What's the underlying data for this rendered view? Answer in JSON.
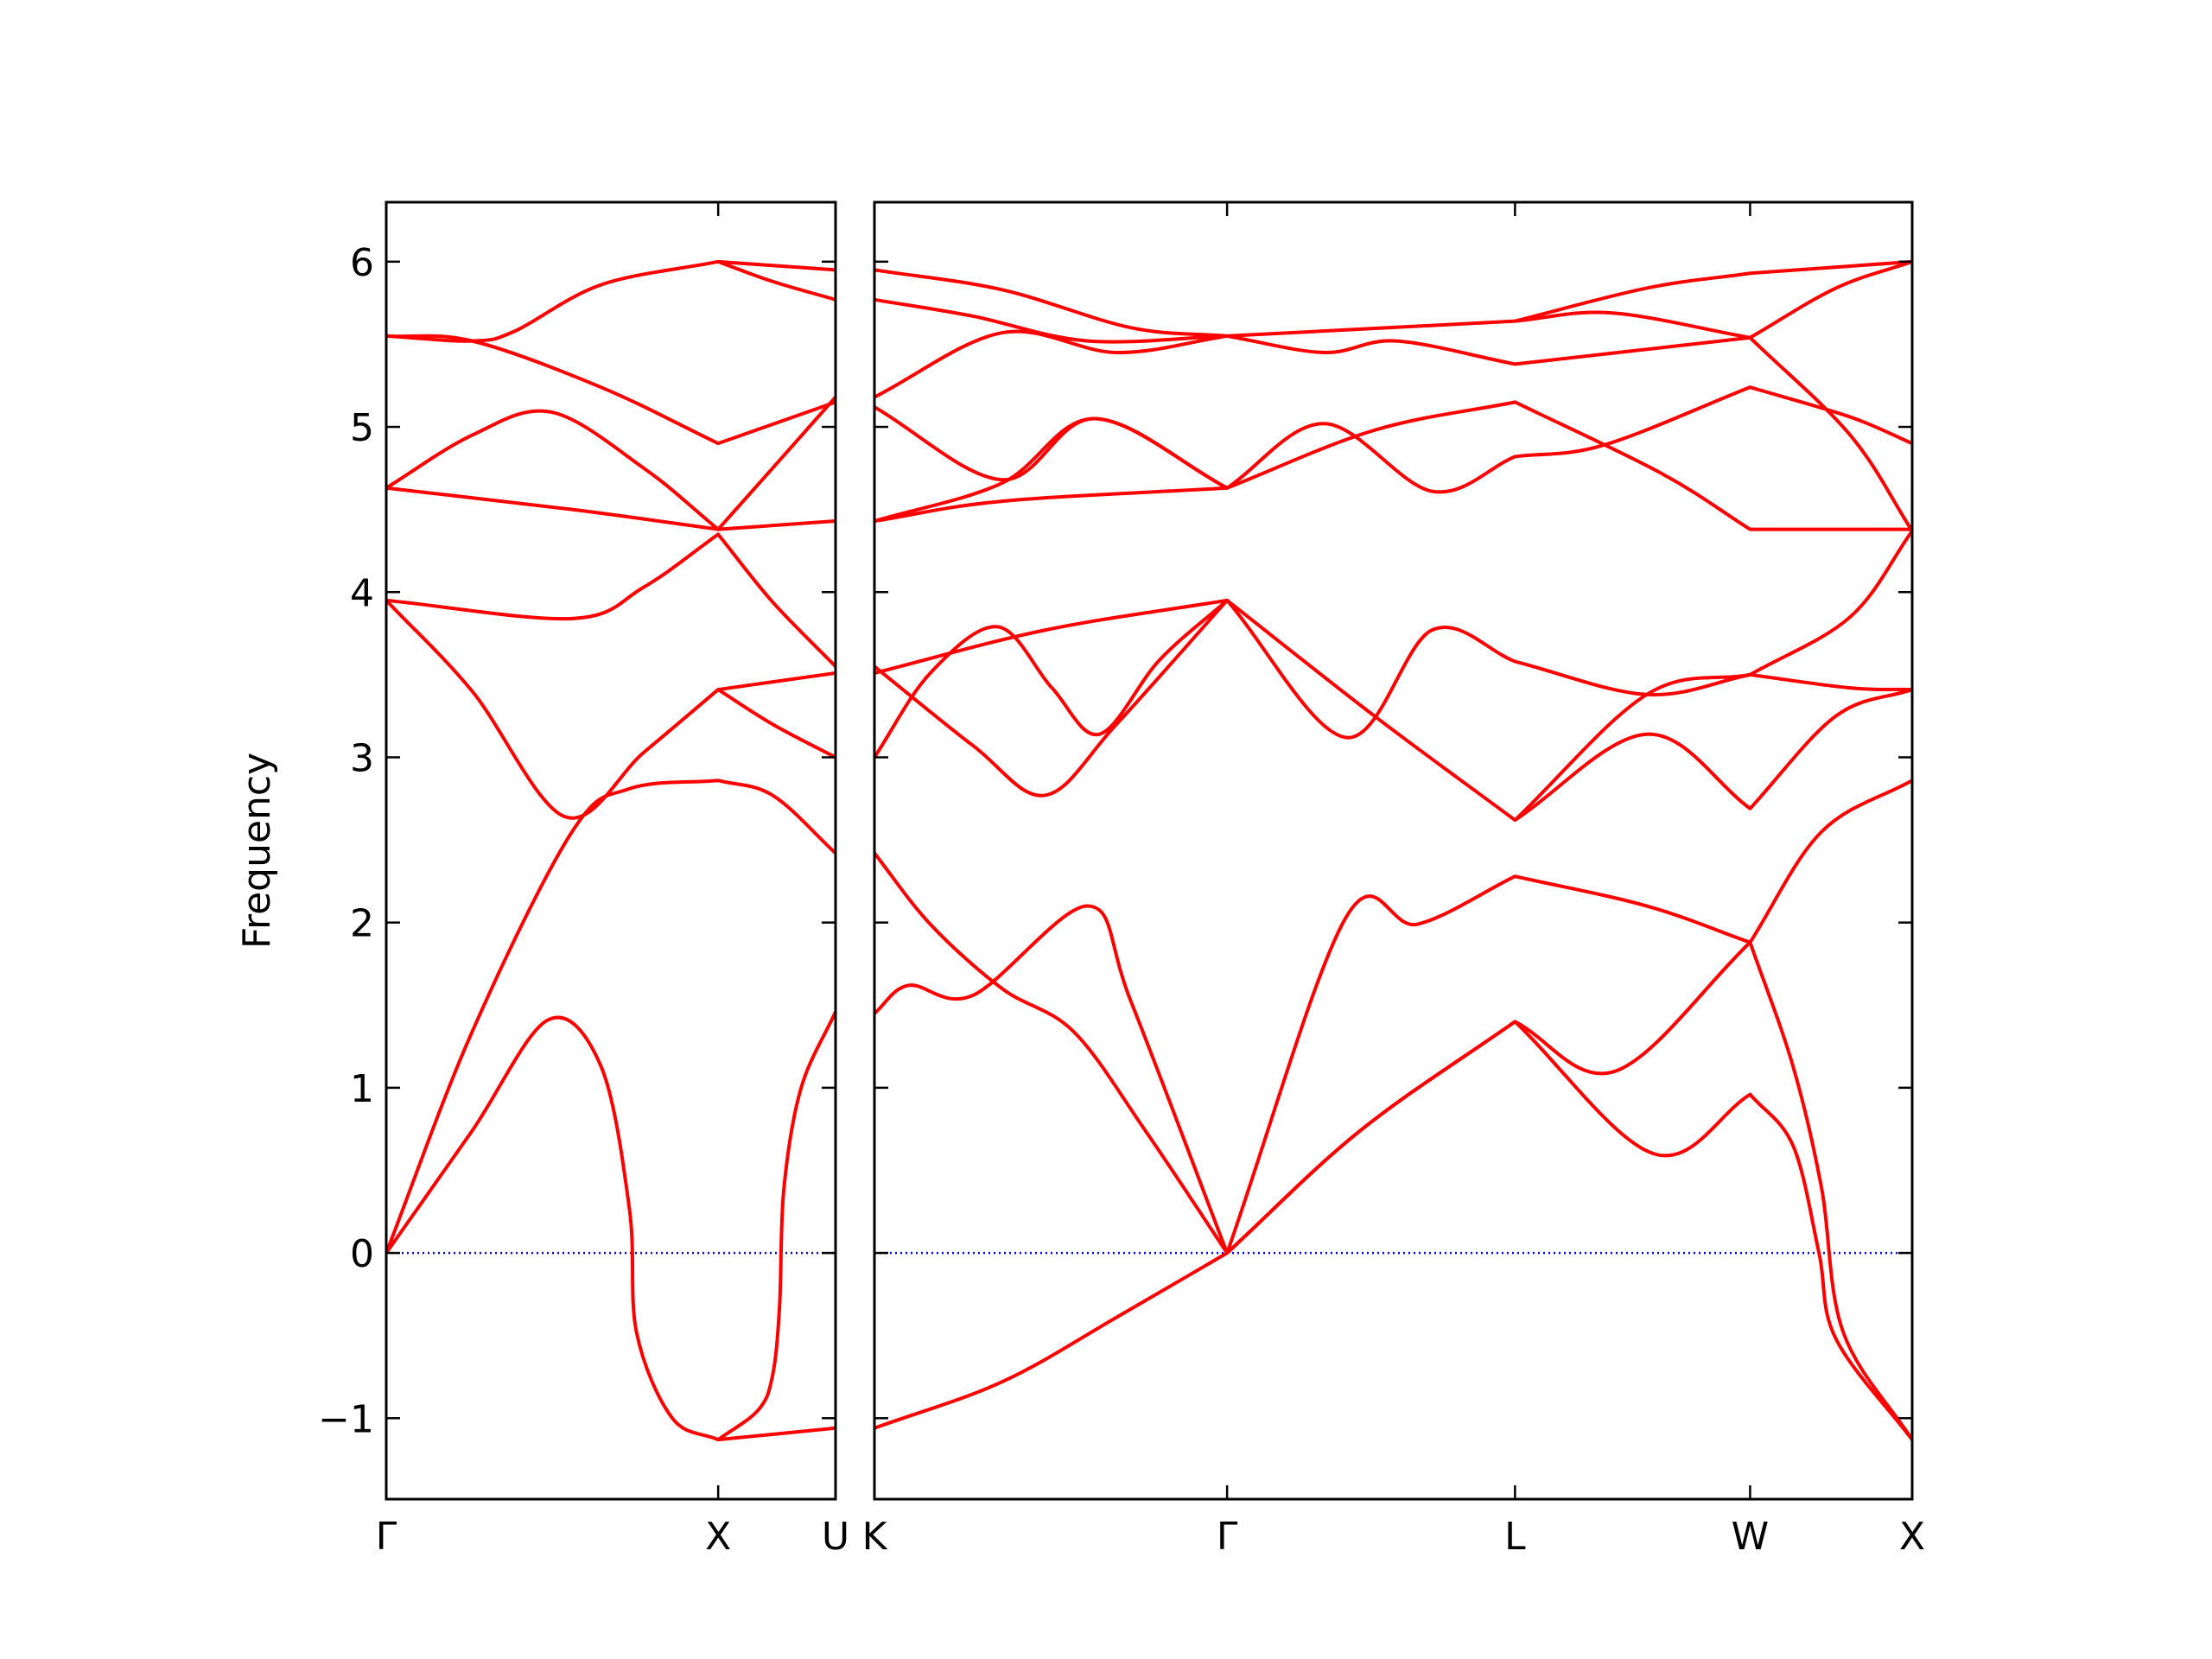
{
  "chart_data": [
    {
      "type": "line",
      "ylabel": "Frequency",
      "color": "#ff0000",
      "hline": 0,
      "hline_color": "#0000ff",
      "show_ytick_labels": true,
      "xlim": [
        0,
        1.3536
      ],
      "xticks": [
        {
          "value": 0,
          "label": "Γ"
        },
        {
          "value": 1.0,
          "label": "X"
        },
        {
          "value": 1.3536,
          "label": "U"
        }
      ],
      "ylim": [
        -1.49,
        6.36
      ],
      "yticks": [
        {
          "value": -1,
          "label": "−1"
        },
        0,
        1,
        2,
        3,
        4,
        5,
        6
      ],
      "series": [
        {
          "x": [
            0,
            0.259,
            0.487,
            0.647,
            0.733,
            0.754,
            0.862,
            1.0,
            1.121,
            1.164,
            1.185,
            1.198,
            1.25,
            1.3536
          ],
          "values": [
            0,
            0.74,
            1.41,
            1.13,
            0.26,
            -0.48,
            -1.0,
            -1.13,
            -0.95,
            -0.74,
            -0.32,
            0.39,
            1.0,
            1.46
          ]
        },
        {
          "x": [
            1.0,
            1.3536
          ],
          "values": [
            -1.13,
            -1.06
          ]
        },
        {
          "x": [
            0,
            0.259,
            0.56,
            0.733,
            1.0,
            1.164,
            1.3536
          ],
          "values": [
            0,
            1.34,
            2.55,
            2.81,
            2.86,
            2.77,
            2.42
          ]
        },
        {
          "x": [
            0,
            0.259,
            0.539,
            0.776,
            1.0,
            1.3536
          ],
          "values": [
            3.95,
            3.4,
            2.64,
            3.03,
            3.41,
            3.51
          ]
        },
        {
          "x": [
            1.0,
            1.164,
            1.3536
          ],
          "values": [
            3.41,
            3.2,
            3.0
          ]
        },
        {
          "x": [
            0,
            0.56,
            0.776,
            1.0,
            1.164,
            1.3536
          ],
          "values": [
            3.95,
            3.84,
            4.03,
            4.35,
            3.94,
            3.55
          ]
        },
        {
          "x": [
            0,
            0.259,
            0.496,
            0.776,
            1.0,
            1.164,
            1.3536
          ],
          "values": [
            4.63,
            4.95,
            5.09,
            4.75,
            4.38,
            4.75,
            5.18
          ]
        },
        {
          "x": [
            0,
            0.56,
            1.0,
            1.3536
          ],
          "values": [
            4.63,
            4.5,
            4.38,
            4.43
          ]
        },
        {
          "x": [
            0,
            0.259,
            0.647,
            1.0,
            1.3536
          ],
          "values": [
            5.55,
            5.52,
            5.24,
            4.9,
            5.15
          ]
        },
        {
          "x": [
            0,
            0.259,
            0.388,
            0.647,
            1.0,
            1.3536
          ],
          "values": [
            5.55,
            5.52,
            5.58,
            5.86,
            6.0,
            5.95
          ]
        },
        {
          "x": [
            1.0,
            1.164,
            1.3536
          ],
          "values": [
            6.0,
            5.88,
            5.77
          ]
        }
      ]
    },
    {
      "type": "line",
      "color": "#ff0000",
      "hline": 0,
      "hline_color": "#0000ff",
      "show_ytick_labels": false,
      "xlim": [
        0,
        3.1213
      ],
      "xticks": [
        {
          "value": 0,
          "label": "K"
        },
        {
          "value": 1.0607,
          "label": "Γ"
        },
        {
          "value": 1.9267,
          "label": "L"
        },
        {
          "value": 2.6338,
          "label": "W"
        },
        {
          "value": 3.1213,
          "label": "X"
        }
      ],
      "ylim": [
        -1.49,
        6.36
      ],
      "yticks": [
        -1,
        0,
        1,
        2,
        3,
        4,
        5,
        6
      ],
      "series": [
        {
          "x": [
            0,
            0.384,
            0.728,
            1.0607,
            1.461,
            1.9267,
            2.228,
            2.6338,
            2.763,
            2.849,
            2.914,
            3.1213
          ],
          "values": [
            -1.06,
            -0.78,
            -0.39,
            0,
            0.74,
            1.4,
            1.1,
            1.88,
            1.13,
            0.39,
            -0.48,
            -1.13
          ]
        },
        {
          "x": [
            0,
            0.168,
            0.384,
            0.599,
            0.815,
            1.0607,
            1.418,
            1.634,
            1.9267,
            2.323,
            2.6338,
            2.849,
            3.1213
          ],
          "values": [
            2.42,
            1.99,
            1.6,
            1.34,
            0.74,
            0,
            2.03,
            1.99,
            2.28,
            2.1,
            1.88,
            2.55,
            2.86
          ]
        },
        {
          "x": [
            0,
            0.103,
            0.297,
            0.642,
            0.772,
            1.0607,
            1.461,
            1.9267,
            2.345,
            2.6338,
            2.763,
            2.841,
            2.892,
            3.1213
          ],
          "values": [
            1.45,
            1.62,
            1.56,
            2.1,
            1.52,
            0,
            0.74,
            1.4,
            0.6,
            0.96,
            0.65,
            0,
            -0.52,
            -1.13
          ]
        },
        {
          "x": [
            0,
            0.168,
            0.371,
            0.534,
            0.677,
            0.858,
            1.0607,
            1.418,
            1.677,
            1.9267,
            2.323,
            2.6338,
            2.935,
            3.1213
          ],
          "values": [
            3.0,
            3.51,
            3.79,
            3.42,
            3.14,
            3.59,
            3.95,
            3.12,
            3.77,
            3.58,
            3.38,
            3.5,
            3.42,
            3.41
          ]
        },
        {
          "x": [
            0,
            0.297,
            0.513,
            0.728,
            1.0607,
            1.504,
            1.9267,
            2.323,
            2.6338,
            2.892,
            3.1213
          ],
          "values": [
            3.55,
            3.07,
            2.77,
            3.2,
            3.95,
            3.25,
            2.62,
            3.14,
            2.69,
            3.25,
            3.41
          ]
        },
        {
          "x": [
            0,
            0.513,
            1.0607
          ],
          "values": [
            3.51,
            3.77,
            3.95
          ]
        },
        {
          "x": [
            1.9267,
            2.323,
            2.6338,
            2.935,
            3.1213
          ],
          "values": [
            2.62,
            3.38,
            3.5,
            3.85,
            4.37
          ]
        },
        {
          "x": [
            0,
            0.384,
            1.0607,
            1.504,
            1.9267,
            2.366,
            2.6338,
            3.1213
          ],
          "values": [
            4.43,
            4.55,
            4.63,
            4.98,
            5.15,
            4.72,
            4.38,
            4.38
          ]
        },
        {
          "x": [
            0,
            0.384,
            0.664,
            1.0607,
            1.353,
            1.677,
            1.9267,
            2.194,
            2.6338,
            2.935,
            3.1213
          ],
          "values": [
            4.43,
            4.66,
            5.05,
            4.63,
            5.02,
            4.61,
            4.82,
            4.89,
            5.24,
            5.06,
            4.9
          ]
        },
        {
          "x": [
            0,
            0.384,
            0.664,
            1.0607
          ],
          "values": [
            5.12,
            4.68,
            5.05,
            4.63
          ]
        },
        {
          "x": [
            0,
            0.384,
            0.728,
            1.0607,
            1.353,
            1.569,
            1.9267,
            2.6338,
            2.935,
            3.1213
          ],
          "values": [
            5.18,
            5.57,
            5.45,
            5.55,
            5.45,
            5.52,
            5.38,
            5.54,
            4.95,
            4.37
          ]
        },
        {
          "x": [
            0,
            0.297,
            0.642,
            1.0607,
            1.9267,
            2.216,
            2.6338,
            2.892,
            3.1213
          ],
          "values": [
            5.77,
            5.67,
            5.52,
            5.55,
            5.64,
            5.69,
            5.54,
            5.84,
            6.0
          ]
        },
        {
          "x": [
            0,
            0.384,
            0.772,
            1.0607
          ],
          "values": [
            5.95,
            5.83,
            5.6,
            5.55
          ]
        },
        {
          "x": [
            1.9267,
            2.323,
            2.6338,
            3.1213
          ],
          "values": [
            5.64,
            5.84,
            5.93,
            6.0
          ]
        }
      ]
    }
  ]
}
